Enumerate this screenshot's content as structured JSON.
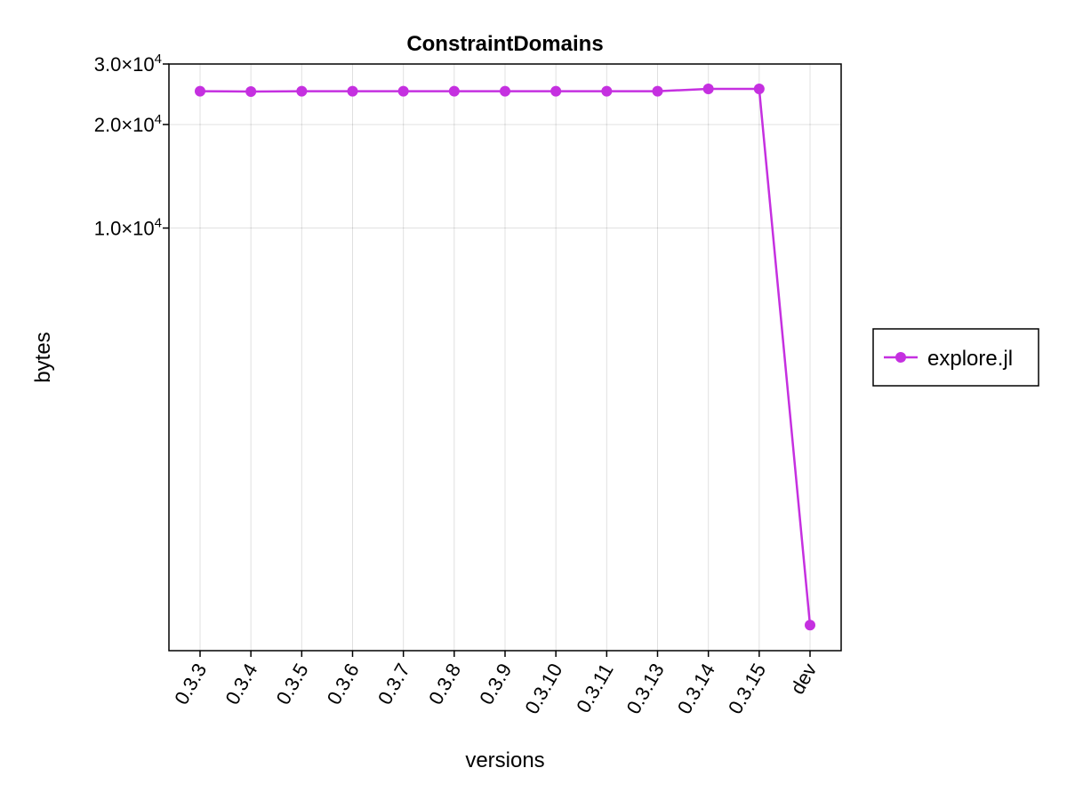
{
  "chart_data": {
    "type": "line",
    "title": "ConstraintDomains",
    "xlabel": "versions",
    "ylabel": "bytes",
    "categories": [
      "0.3.3",
      "0.3.4",
      "0.3.5",
      "0.3.6",
      "0.3.7",
      "0.3.8",
      "0.3.9",
      "0.3.10",
      "0.3.11",
      "0.3.13",
      "0.3.14",
      "0.3.15",
      "dev"
    ],
    "yscale": "log10",
    "ylim": [
      590,
      30000
    ],
    "yticks": [
      {
        "value": 10000,
        "mantissa": "1.0",
        "exponent": "4"
      },
      {
        "value": 20000,
        "mantissa": "2.0",
        "exponent": "4"
      },
      {
        "value": 30000,
        "mantissa": "3.0",
        "exponent": "4"
      }
    ],
    "tick_multiplier": "×10",
    "series": [
      {
        "name": "explore.jl",
        "color": "#c530e0",
        "values": [
          25000,
          24950,
          25000,
          25000,
          25000,
          25000,
          25000,
          25000,
          25000,
          25000,
          25400,
          25400,
          700
        ]
      }
    ],
    "grid": true,
    "legend_position": "right"
  }
}
